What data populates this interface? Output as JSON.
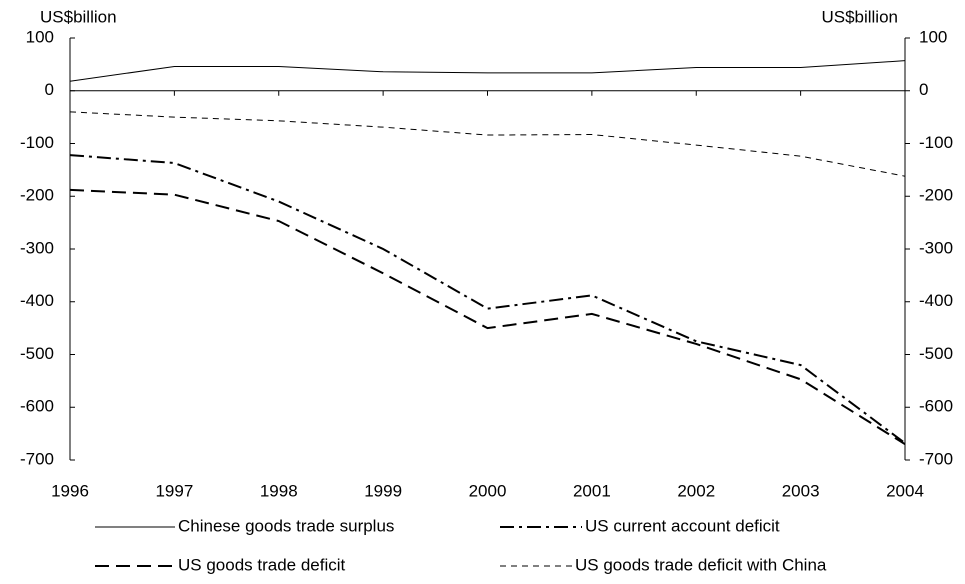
{
  "chart_data": {
    "type": "line",
    "y_label": "US$billion",
    "y2_label": "US$billion",
    "x": [
      1996,
      1997,
      1998,
      1999,
      2000,
      2001,
      2002,
      2003,
      2004
    ],
    "xlim": [
      1996,
      2004
    ],
    "xticks": [
      1996,
      1997,
      1998,
      1999,
      2000,
      2001,
      2002,
      2003,
      2004
    ],
    "ylim": [
      -700,
      100
    ],
    "yticks": [
      100,
      0,
      -100,
      -200,
      -300,
      -400,
      -500,
      -600,
      -700
    ],
    "y2lim": [
      -700,
      100
    ],
    "y2ticks": [
      100,
      0,
      -100,
      -200,
      -300,
      -400,
      -500,
      -600,
      -700
    ],
    "series": [
      {
        "name": "Chinese goods trade surplus",
        "color": "#000000",
        "line_style": "solid",
        "line_width": 1,
        "values": [
          18,
          46,
          46,
          36,
          34,
          34,
          44,
          44,
          57
        ]
      },
      {
        "name": "US current account deficit",
        "color": "#000000",
        "line_style": "dashdot",
        "line_width": 2,
        "values": [
          -122,
          -137,
          -210,
          -300,
          -413,
          -388,
          -475,
          -520,
          -668
        ]
      },
      {
        "name": "US goods trade deficit",
        "color": "#000000",
        "line_style": "dashed",
        "line_width": 2,
        "values": [
          -188,
          -197,
          -247,
          -346,
          -450,
          -423,
          -480,
          -547,
          -670
        ]
      },
      {
        "name": "US goods trade deficit with China",
        "color": "#000000",
        "line_style": "fine-dashed",
        "line_width": 1,
        "values": [
          -40,
          -50,
          -57,
          -69,
          -84,
          -83,
          -103,
          -124,
          -162
        ]
      }
    ]
  }
}
